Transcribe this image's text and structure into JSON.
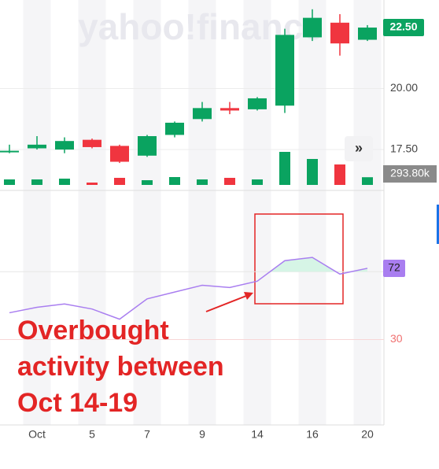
{
  "chart_data": {
    "type": "candlestick",
    "watermark": "yahoo!finance",
    "categories": [
      null,
      "Oct",
      null,
      "5",
      null,
      "7",
      null,
      "9",
      null,
      "14",
      null,
      "16",
      null,
      "20"
    ],
    "open": [
      17.4,
      17.55,
      17.5,
      17.9,
      17.65,
      17.25,
      18.1,
      18.75,
      19.2,
      19.15,
      19.3,
      22.1,
      22.7,
      22.0
    ],
    "high": [
      17.7,
      18.05,
      18.0,
      17.95,
      17.7,
      18.1,
      18.65,
      19.45,
      19.45,
      19.65,
      22.45,
      23.25,
      23.05,
      22.6
    ],
    "low": [
      17.35,
      17.5,
      17.35,
      17.55,
      16.95,
      17.2,
      18.0,
      18.65,
      18.95,
      19.1,
      19.0,
      21.95,
      21.35,
      21.95
    ],
    "close": [
      17.45,
      17.7,
      17.85,
      17.6,
      17.0,
      18.05,
      18.6,
      19.2,
      19.1,
      19.6,
      22.2,
      22.9,
      21.85,
      22.5
    ],
    "close_label": "22.50",
    "up_color": "#0aa360",
    "down_color": "#f0353f",
    "ylim": [
      16.05,
      23.63
    ],
    "yticks": [
      {
        "value": 17.5,
        "label": "17.50"
      },
      {
        "value": 20,
        "label": "20.00"
      }
    ],
    "volume": [
      210,
      210,
      240,
      90,
      270,
      180,
      300,
      210,
      270,
      210,
      1260,
      990,
      780,
      293.8
    ],
    "volume_label": "293.80k",
    "volume_ylim": [
      0,
      1800
    ],
    "rsi": {
      "values": [
        45.8,
        49,
        51,
        48,
        42,
        54,
        58,
        62,
        60.7,
        64.4,
        76.5,
        78.4,
        68.6,
        72
      ],
      "value_label": "72",
      "color": "#a97ef0",
      "ylim": [
        -18,
        116.5
      ],
      "yticks": [
        30
      ],
      "overbought": 70
    },
    "annotation": [
      "Overbought",
      "activity between",
      "Oct 14-19"
    ]
  }
}
